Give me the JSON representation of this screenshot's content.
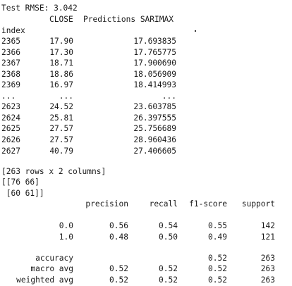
{
  "rmse_line": "Test RMSE: 3.042",
  "dataframe": {
    "columns": [
      "CLOSE",
      "Predictions SARIMAX"
    ],
    "index_name": "index",
    "rows": [
      {
        "index": "2365",
        "close": "17.90",
        "pred": "17.693835"
      },
      {
        "index": "2366",
        "close": "17.30",
        "pred": "17.765775"
      },
      {
        "index": "2367",
        "close": "18.71",
        "pred": "17.900690"
      },
      {
        "index": "2368",
        "close": "18.86",
        "pred": "18.056909"
      },
      {
        "index": "2369",
        "close": "16.97",
        "pred": "18.414993"
      },
      {
        "index": "...",
        "close": "...",
        "pred": "..."
      },
      {
        "index": "2623",
        "close": "24.52",
        "pred": "23.603785"
      },
      {
        "index": "2624",
        "close": "25.81",
        "pred": "26.397555"
      },
      {
        "index": "2625",
        "close": "27.57",
        "pred": "25.756689"
      },
      {
        "index": "2626",
        "close": "27.57",
        "pred": "28.960436"
      },
      {
        "index": "2627",
        "close": "40.79",
        "pred": "27.406605"
      }
    ],
    "shape_line": "[263 rows x 2 columns]"
  },
  "confusion_matrix": [
    "[[76 66]",
    " [60 61]]"
  ],
  "classification_report": {
    "headers": [
      "precision",
      "recall",
      "f1-score",
      "support"
    ],
    "class_rows": [
      {
        "label": "0.0",
        "precision": "0.56",
        "recall": "0.54",
        "f1": "0.55",
        "support": "142"
      },
      {
        "label": "1.0",
        "precision": "0.48",
        "recall": "0.50",
        "f1": "0.49",
        "support": "121"
      }
    ],
    "accuracy": {
      "label": "accuracy",
      "f1": "0.52",
      "support": "263"
    },
    "avg_rows": [
      {
        "label": "macro avg",
        "precision": "0.52",
        "recall": "0.52",
        "f1": "0.52",
        "support": "263"
      },
      {
        "label": "weighted avg",
        "precision": "0.52",
        "recall": "0.52",
        "f1": "0.52",
        "support": "263"
      }
    ]
  }
}
